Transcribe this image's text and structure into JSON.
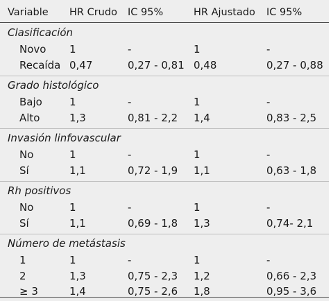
{
  "header": {
    "variable": "Variable",
    "hr_crudo": "HR Crudo",
    "ic1": "IC 95%",
    "hr_ajustado": "HR Ajustado",
    "ic2": "IC 95%"
  },
  "groups": [
    {
      "title": "Clasificación",
      "rows": [
        {
          "label": "Novo",
          "hr_crudo": "1",
          "ic1": "-",
          "hr_ajustado": "1",
          "ic2": "-"
        },
        {
          "label": "Recaída",
          "hr_crudo": "0,47",
          "ic1": "0,27 - 0,81",
          "hr_ajustado": "0,48",
          "ic2": "0,27 - 0,88"
        }
      ]
    },
    {
      "title": "Grado histológico",
      "rows": [
        {
          "label": "Bajo",
          "hr_crudo": "1",
          "ic1": "-",
          "hr_ajustado": "1",
          "ic2": "-"
        },
        {
          "label": "Alto",
          "hr_crudo": "1,3",
          "ic1": "0,81 - 2,2",
          "hr_ajustado": "1,4",
          "ic2": "0,83 - 2,5"
        }
      ]
    },
    {
      "title": "Invasión linfovascular",
      "rows": [
        {
          "label": "No",
          "hr_crudo": "1",
          "ic1": "-",
          "hr_ajustado": "1",
          "ic2": "-"
        },
        {
          "label": "Sí",
          "hr_crudo": "1,1",
          "ic1": "0,72 - 1,9",
          "hr_ajustado": "1,1",
          "ic2": "0,63 - 1,8"
        }
      ]
    },
    {
      "title": "Rh positivos",
      "rows": [
        {
          "label": "No",
          "hr_crudo": "1",
          "ic1": "-",
          "hr_ajustado": "1",
          "ic2": "-"
        },
        {
          "label": "Sí",
          "hr_crudo": "1,1",
          "ic1": "0,69 - 1,8",
          "hr_ajustado": "1,3",
          "ic2": "0,74- 2,1"
        }
      ]
    },
    {
      "title": "Número de metástasis",
      "rows": [
        {
          "label": "1",
          "hr_crudo": "1",
          "ic1": "-",
          "hr_ajustado": "1",
          "ic2": "-"
        },
        {
          "label": "2",
          "hr_crudo": "1,3",
          "ic1": "0,75 - 2,3",
          "hr_ajustado": "1,2",
          "ic2": "0,66 - 2,3"
        },
        {
          "label": "≥ 3",
          "hr_crudo": "1,4",
          "ic1": "0,75 - 2,6",
          "hr_ajustado": "1,8",
          "ic2": "0,95 - 3,6"
        }
      ]
    }
  ]
}
